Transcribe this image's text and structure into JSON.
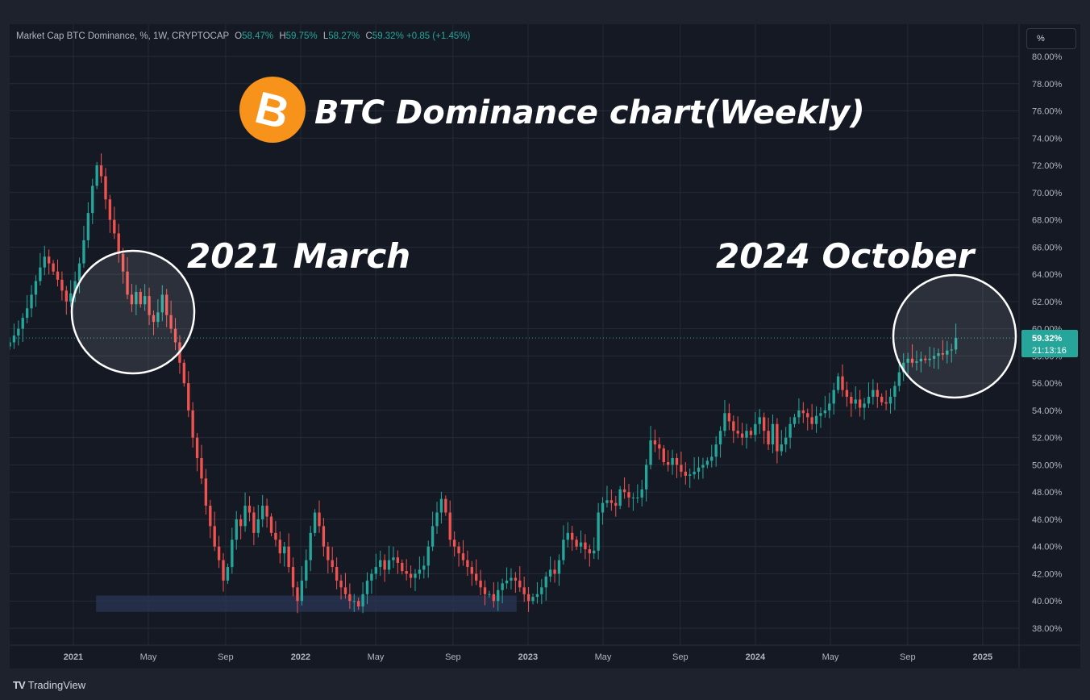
{
  "header": {
    "symbol": "Market Cap BTC Dominance, %, 1W, CRYPTOCAP",
    "open_label": "O",
    "open": "58.47%",
    "high_label": "H",
    "high": "59.75%",
    "low_label": "L",
    "low": "58.27%",
    "close_label": "C",
    "close": "59.32%",
    "change": "+0.85 (+1.45%)"
  },
  "scale_button": "%",
  "price_badge": {
    "value": "59.32%",
    "countdown": "21:13:16"
  },
  "overlay": {
    "title": "BTC Dominance chart(Weekly)",
    "label_left": "2021 March",
    "label_right": "2024 October",
    "bitcoin_symbol": "B"
  },
  "footer": {
    "brand": "TradingView",
    "logo": "TV"
  },
  "colors": {
    "up": "#26a69a",
    "down": "#ef5350",
    "bg": "#151924",
    "grid": "#252a36",
    "accent": "#f7931a"
  },
  "chart_data": {
    "type": "candlestick",
    "title": "Market Cap BTC Dominance, %, 1W, CRYPTOCAP",
    "y_unit": "%",
    "ylim": [
      37,
      80.5
    ],
    "y_ticks": [
      38,
      40,
      42,
      44,
      46,
      48,
      50,
      52,
      54,
      56,
      58,
      60,
      62,
      64,
      66,
      68,
      70,
      72,
      74,
      76,
      78,
      80
    ],
    "x_ticks": [
      {
        "label": "2021",
        "t": 2021.0,
        "bold": true
      },
      {
        "label": "May",
        "t": 2021.33
      },
      {
        "label": "Sep",
        "t": 2021.67
      },
      {
        "label": "2022",
        "t": 2022.0,
        "bold": true
      },
      {
        "label": "May",
        "t": 2022.33
      },
      {
        "label": "Sep",
        "t": 2022.67
      },
      {
        "label": "2023",
        "t": 2023.0,
        "bold": true
      },
      {
        "label": "May",
        "t": 2023.33
      },
      {
        "label": "Sep",
        "t": 2023.67
      },
      {
        "label": "2024",
        "t": 2024.0,
        "bold": true
      },
      {
        "label": "May",
        "t": 2024.33
      },
      {
        "label": "Sep",
        "t": 2024.67
      },
      {
        "label": "2025",
        "t": 2025.0,
        "bold": true
      }
    ],
    "x_range": [
      2020.72,
      2025.16
    ],
    "last_price": 59.32,
    "support_zone": {
      "from": 2021.1,
      "to": 2022.95,
      "low": 39.2,
      "high": 40.4
    },
    "start": 2020.72,
    "week_step": 0.01918,
    "close": [
      59.0,
      59.5,
      60.0,
      60.8,
      61.5,
      62.5,
      63.5,
      64.5,
      65.3,
      64.8,
      64.2,
      63.6,
      62.8,
      62.0,
      62.6,
      63.5,
      64.8,
      66.5,
      68.5,
      70.5,
      72.0,
      71.2,
      69.5,
      68.0,
      67.0,
      65.5,
      64.2,
      62.5,
      61.8,
      62.7,
      61.8,
      62.4,
      61.0,
      60.5,
      61.2,
      62.5,
      61.0,
      60.0,
      59.0,
      57.5,
      56.0,
      54.0,
      52.0,
      50.5,
      49.0,
      47.0,
      45.5,
      44.0,
      43.0,
      41.5,
      42.5,
      44.5,
      46.0,
      45.5,
      47.0,
      46.5,
      45.0,
      46.0,
      47.0,
      46.2,
      45.0,
      44.5,
      43.5,
      44.0,
      42.5,
      41.0,
      40.0,
      41.5,
      43.0,
      45.0,
      46.5,
      45.5,
      44.0,
      43.0,
      42.5,
      41.5,
      41.0,
      40.5,
      40.0,
      40.0,
      39.6,
      40.5,
      41.5,
      42.0,
      42.5,
      43.0,
      42.3,
      43.0,
      43.2,
      42.8,
      42.2,
      42.0,
      41.7,
      42.0,
      42.3,
      42.6,
      44.0,
      45.5,
      46.5,
      47.5,
      46.5,
      44.5,
      44.0,
      43.5,
      43.0,
      42.5,
      42.0,
      41.5,
      41.0,
      40.5,
      40.5,
      40.0,
      40.8,
      41.3,
      41.5,
      41.7,
      41.5,
      41.0,
      40.5,
      40.0,
      40.3,
      40.5,
      41.0,
      41.8,
      42.3,
      42.0,
      43.0,
      44.5,
      45.0,
      44.5,
      44.0,
      44.3,
      43.8,
      43.5,
      43.7,
      46.5,
      47.2,
      47.4,
      47.2,
      47.0,
      48.2,
      48.0,
      47.6,
      47.6,
      47.6,
      48.2,
      50.0,
      51.8,
      51.5,
      51.2,
      50.2,
      50.0,
      50.5,
      50.0,
      49.5,
      49.2,
      49.3,
      49.5,
      49.8,
      50.0,
      50.3,
      50.6,
      51.5,
      52.5,
      53.8,
      53.2,
      52.5,
      52.3,
      52.0,
      52.5,
      52.2,
      53.0,
      53.5,
      52.5,
      51.5,
      53.0,
      51.0,
      51.5,
      52.0,
      53.0,
      53.5,
      54.0,
      53.8,
      53.5,
      53.0,
      53.6,
      53.8,
      54.0,
      54.5,
      55.5,
      56.5,
      55.5,
      55.0,
      54.5,
      54.8,
      54.2,
      54.5,
      55.0,
      55.5,
      55.0,
      54.6,
      54.5,
      55.0,
      55.8,
      56.8,
      57.5,
      57.8,
      57.5,
      57.6,
      57.8,
      57.7,
      57.8,
      58.0,
      58.2,
      58.1,
      58.4,
      58.47,
      59.32
    ]
  }
}
